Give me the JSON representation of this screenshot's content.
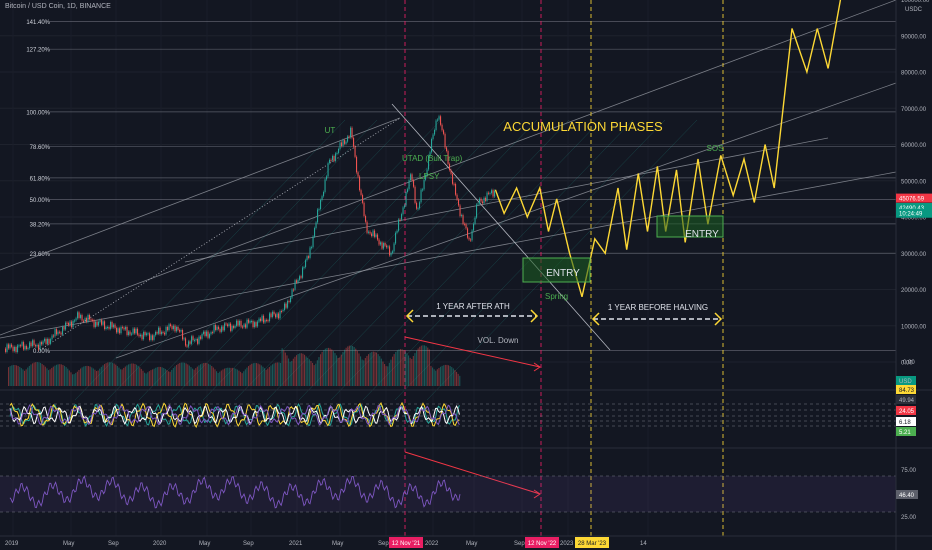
{
  "header": {
    "title": "Bitcoin / USD Coin, 1D, BINANCE"
  },
  "price_axis": {
    "unit": "USDC",
    "ticks": [
      {
        "v": 100000,
        "label": "100000.00"
      },
      {
        "v": 90000,
        "label": "90000.00"
      },
      {
        "v": 80000,
        "label": "80000.00"
      },
      {
        "v": 70000,
        "label": "70000.00"
      },
      {
        "v": 60000,
        "label": "60000.00"
      },
      {
        "v": 50000,
        "label": "50000.00"
      },
      {
        "v": 40000,
        "label": "40000.00"
      },
      {
        "v": 30000,
        "label": "30000.00"
      },
      {
        "v": 20000,
        "label": "20000.00"
      },
      {
        "v": 10000,
        "label": "10000.00"
      },
      {
        "v": 0,
        "label": "0.00"
      }
    ],
    "badges": [
      {
        "label": "45076.59",
        "v": 45076.59,
        "color": "#f23645"
      },
      {
        "label": "42490.43",
        "v": 42490.43,
        "color": "#089981"
      },
      {
        "label": "10:24:49",
        "v": 40900,
        "color": "#089981"
      }
    ]
  },
  "fib_levels": [
    {
      "label": "141.40%",
      "v": 93900
    },
    {
      "label": "127.20%",
      "v": 86300
    },
    {
      "label": "100.00%",
      "v": 69000
    },
    {
      "label": "78.60%",
      "v": 59400
    },
    {
      "label": "61.80%",
      "v": 50800
    },
    {
      "label": "50.00%",
      "v": 44800
    },
    {
      "label": "38.20%",
      "v": 38100
    },
    {
      "label": "23.60%",
      "v": 30000
    },
    {
      "label": "0.00%",
      "v": 3200
    }
  ],
  "annotations": {
    "accumulation": "ACCUMULATION PHASES",
    "ut": "UT",
    "utad": "UTAD (Bull Trap)",
    "lpsy": "LPSY",
    "sos": "SOS",
    "spring": "Spring",
    "entry1": "ENTRY",
    "entry2": "ENTRY",
    "after_ath": "1 YEAR AFTER ATH",
    "before_halving": "1 YEAR BEFORE HALVING",
    "vol_down": "VOL. Down"
  },
  "x_axis": {
    "labels": [
      {
        "label": "2019",
        "x": 5
      },
      {
        "label": "May",
        "x": 63
      },
      {
        "label": "Sep",
        "x": 108
      },
      {
        "label": "2020",
        "x": 153
      },
      {
        "label": "May",
        "x": 199
      },
      {
        "label": "Sep",
        "x": 243
      },
      {
        "label": "2021",
        "x": 289
      },
      {
        "label": "May",
        "x": 332
      },
      {
        "label": "Sep",
        "x": 378
      },
      {
        "label": "2022",
        "x": 425
      },
      {
        "label": "May",
        "x": 466
      },
      {
        "label": "Sep",
        "x": 514
      },
      {
        "label": "2023",
        "x": 560
      },
      {
        "label": "14",
        "x": 640
      }
    ],
    "date_badges": [
      {
        "label": "12 Nov '21",
        "x": 405,
        "color": "#e91e63",
        "text_color": "#ffffff"
      },
      {
        "label": "12 Nov '22",
        "x": 541,
        "color": "#e91e63",
        "text_color": "#ffffff"
      },
      {
        "label": "28 Mar '23",
        "x": 591,
        "color": "#fdd835",
        "text_color": "#131722"
      }
    ]
  },
  "volume_axis": {
    "labels": [
      "0.00"
    ]
  },
  "oscillator_axis": {
    "badges": [
      {
        "label": "USD",
        "color": "#089981",
        "text_color": "#b2b5be"
      },
      {
        "label": "84.73",
        "color": "#fdd835",
        "text_color": "#131722"
      },
      {
        "label": "49.94",
        "color": "#2a2e39",
        "text_color": "#b2b5be"
      },
      {
        "label": "24.05",
        "color": "#f23645",
        "text_color": "#ffffff"
      },
      {
        "label": "6.18",
        "color": "#ffffff",
        "text_color": "#131722"
      },
      {
        "label": "5.21",
        "color": "#4caf50",
        "text_color": "#ffffff"
      }
    ]
  },
  "rsi_axis": {
    "labels": [
      "75.00",
      "25.00"
    ],
    "badges": [
      {
        "label": "46.40",
        "color": "#5d606b"
      }
    ]
  },
  "colors": {
    "background": "#131722",
    "up": "#26a69a",
    "down": "#ef5350",
    "projection": "#fdd835",
    "channel": "#9598a1",
    "rsi": "#7e57c2"
  },
  "chart_data": {
    "type": "line",
    "title": "Bitcoin / USD Coin, 1D, BINANCE",
    "ylabel": "USDC",
    "ylim": [
      -10000,
      100000
    ],
    "series": [
      {
        "price_history": [
          [
            "2019-01-01",
            3700
          ],
          [
            "2019-04-01",
            5000
          ],
          [
            "2019-06-26",
            12500
          ],
          [
            "2019-09-01",
            10000
          ],
          [
            "2019-12-15",
            7000
          ],
          [
            "2020-02-15",
            10000
          ],
          [
            "2020-03-13",
            5000
          ],
          [
            "2020-06-01",
            9500
          ],
          [
            "2020-09-01",
            11000
          ],
          [
            "2020-11-01",
            14000
          ],
          [
            "2021-01-01",
            29000
          ],
          [
            "2021-02-20",
            55000
          ],
          [
            "2021-04-14",
            63500
          ],
          [
            "2021-05-20",
            37000
          ],
          [
            "2021-07-20",
            30000
          ],
          [
            "2021-09-07",
            52000
          ],
          [
            "2021-09-21",
            41000
          ],
          [
            "2021-11-10",
            69000
          ],
          [
            "2021-12-20",
            47000
          ],
          [
            "2022-01-24",
            33000
          ],
          [
            "2022-02-15",
            44000
          ],
          [
            "2022-03-30",
            47500
          ]
        ]
      },
      {
        "projection": [
          [
            "2022-03-30",
            47500
          ],
          [
            "2022-04-20",
            41000
          ],
          [
            "2022-05-20",
            48000
          ],
          [
            "2022-06-15",
            40000
          ],
          [
            "2022-07-15",
            48000
          ],
          [
            "2022-08-05",
            36000
          ],
          [
            "2022-08-25",
            45000
          ],
          [
            "2022-09-25",
            30000
          ],
          [
            "2022-10-25",
            18000
          ],
          [
            "2022-11-25",
            34000
          ],
          [
            "2022-12-20",
            30000
          ],
          [
            "2023-01-20",
            48000
          ],
          [
            "2023-02-10",
            31000
          ],
          [
            "2023-03-10",
            52000
          ],
          [
            "2023-04-01",
            36000
          ],
          [
            "2023-04-25",
            54000
          ],
          [
            "2023-05-15",
            36000
          ],
          [
            "2023-06-10",
            53000
          ],
          [
            "2023-07-01",
            33000
          ],
          [
            "2023-08-01",
            56000
          ],
          [
            "2023-08-25",
            38000
          ],
          [
            "2023-09-25",
            57000
          ],
          [
            "2023-10-25",
            46000
          ],
          [
            "2023-11-20",
            56000
          ],
          [
            "2023-12-15",
            44000
          ],
          [
            "2024-01-10",
            60000
          ],
          [
            "2024-02-01",
            48000
          ],
          [
            "2024-03-15",
            92000
          ],
          [
            "2024-04-20",
            80000
          ],
          [
            "2024-05-15",
            92000
          ],
          [
            "2024-06-10",
            81000
          ],
          [
            "2024-07-10",
            100000
          ]
        ]
      }
    ]
  }
}
